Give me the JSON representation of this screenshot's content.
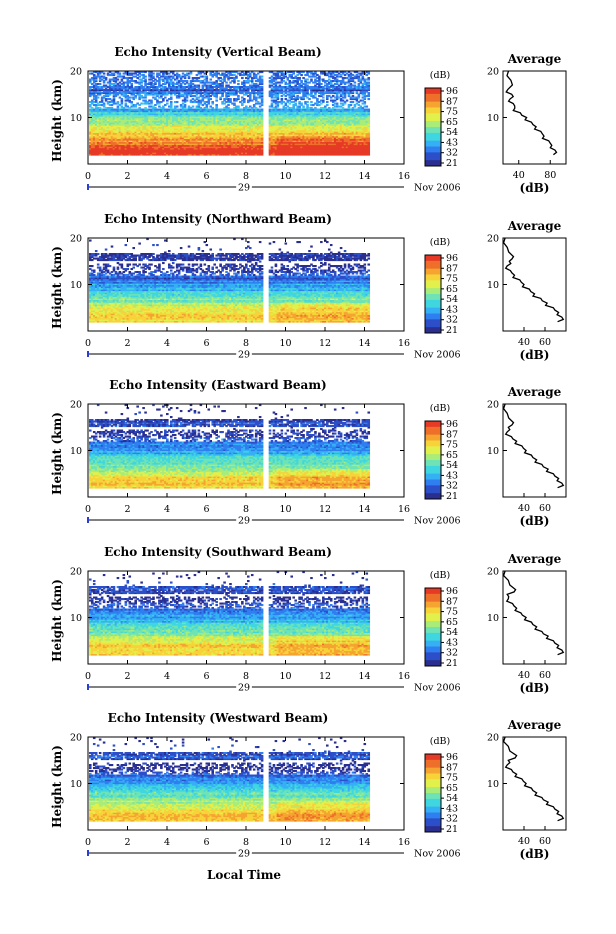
{
  "colors": {
    "colormap": [
      "#2a2f8f",
      "#2c4fc9",
      "#2f7ff0",
      "#36b0f5",
      "#3fd6e0",
      "#6fe3b5",
      "#a8ec7a",
      "#e2f04c",
      "#f7d33a",
      "#f5a431",
      "#ee6f2a",
      "#e63a26"
    ],
    "gap": "#ffffff"
  },
  "common": {
    "x_ticks": [
      "0",
      "2",
      "4",
      "6",
      "8",
      "10",
      "12",
      "14",
      "16"
    ],
    "y_ticks": [
      "20",
      "10"
    ],
    "ylabel": "Height (km)",
    "day_label": "29",
    "month_label": "Nov 2006",
    "colorbar_unit": "(dB)",
    "colorbar_ticks": [
      "96",
      "87",
      "75",
      "65",
      "54",
      "43",
      "32",
      "21"
    ],
    "avg_title": "Average",
    "avg_xlabel": "(dB)",
    "xlabel": "Local Time"
  },
  "chart_data": [
    {
      "type": "heatmap",
      "title": "Echo Intensity (Vertical Beam)",
      "x_range": [
        0,
        16
      ],
      "y_range": [
        0,
        20
      ],
      "clim": [
        21,
        96
      ],
      "data_extent_hours": [
        0,
        14.2
      ],
      "gap_hours": [
        8.8,
        9.1
      ],
      "avg_x_ticks": [
        "40",
        "80"
      ],
      "profile": {
        "x_range": [
          20,
          100
        ],
        "height_km": [
          20,
          18,
          16,
          15,
          14,
          13,
          12,
          11,
          10,
          9,
          8,
          7,
          6,
          5,
          4,
          3,
          2
        ],
        "db": [
          27,
          30,
          26,
          31,
          29,
          33,
          35,
          42,
          50,
          56,
          62,
          68,
          72,
          78,
          82,
          86,
          84
        ]
      }
    },
    {
      "type": "heatmap",
      "title": "Echo Intensity (Northward Beam)",
      "x_range": [
        0,
        16
      ],
      "y_range": [
        0,
        20
      ],
      "clim": [
        21,
        96
      ],
      "data_extent_hours": [
        0,
        14.2
      ],
      "gap_hours": [
        8.8,
        9.1
      ],
      "avg_x_ticks": [
        "40",
        "60"
      ],
      "profile": {
        "x_range": [
          20,
          80
        ],
        "height_km": [
          20,
          18,
          16,
          15,
          14,
          13,
          12,
          11,
          10,
          9,
          8,
          7,
          6,
          5,
          4,
          3,
          2
        ],
        "db": [
          22,
          24,
          30,
          26,
          24,
          27,
          31,
          36,
          40,
          45,
          50,
          56,
          62,
          68,
          73,
          76,
          72
        ]
      }
    },
    {
      "type": "heatmap",
      "title": "Echo Intensity (Eastward Beam)",
      "x_range": [
        0,
        16
      ],
      "y_range": [
        0,
        20
      ],
      "clim": [
        21,
        96
      ],
      "data_extent_hours": [
        0,
        14.2
      ],
      "gap_hours": [
        8.8,
        9.1
      ],
      "avg_x_ticks": [
        "40",
        "60"
      ],
      "profile": {
        "x_range": [
          20,
          80
        ],
        "height_km": [
          20,
          18,
          16,
          15,
          14,
          13,
          12,
          11,
          10,
          9,
          8,
          7,
          6,
          5,
          4,
          3,
          2
        ],
        "db": [
          22,
          24,
          30,
          25,
          24,
          28,
          33,
          38,
          42,
          47,
          52,
          57,
          63,
          68,
          73,
          76,
          72
        ]
      }
    },
    {
      "type": "heatmap",
      "title": "Echo Intensity (Southward Beam)",
      "x_range": [
        0,
        16
      ],
      "y_range": [
        0,
        20
      ],
      "clim": [
        21,
        96
      ],
      "data_extent_hours": [
        0,
        14.2
      ],
      "gap_hours": [
        8.8,
        9.1
      ],
      "avg_x_ticks": [
        "40",
        "60"
      ],
      "profile": {
        "x_range": [
          20,
          80
        ],
        "height_km": [
          20,
          18,
          16,
          15,
          14,
          13,
          12,
          11,
          10,
          9,
          8,
          7,
          6,
          5,
          4,
          3,
          2
        ],
        "db": [
          22,
          25,
          32,
          24,
          25,
          29,
          33,
          37,
          42,
          47,
          52,
          57,
          63,
          68,
          73,
          76,
          72
        ]
      }
    },
    {
      "type": "heatmap",
      "title": "Echo Intensity (Westward Beam)",
      "x_range": [
        0,
        16
      ],
      "y_range": [
        0,
        20
      ],
      "clim": [
        21,
        96
      ],
      "data_extent_hours": [
        0,
        14.2
      ],
      "gap_hours": [
        8.8,
        9.1
      ],
      "avg_x_ticks": [
        "40",
        "60"
      ],
      "profile": {
        "x_range": [
          20,
          80
        ],
        "height_km": [
          20,
          18,
          16,
          15,
          14,
          13,
          12,
          11,
          10,
          9,
          8,
          7,
          6,
          5,
          4,
          3,
          2
        ],
        "db": [
          22,
          25,
          33,
          25,
          24,
          28,
          33,
          38,
          42,
          47,
          52,
          57,
          63,
          68,
          73,
          76,
          72
        ]
      }
    }
  ]
}
